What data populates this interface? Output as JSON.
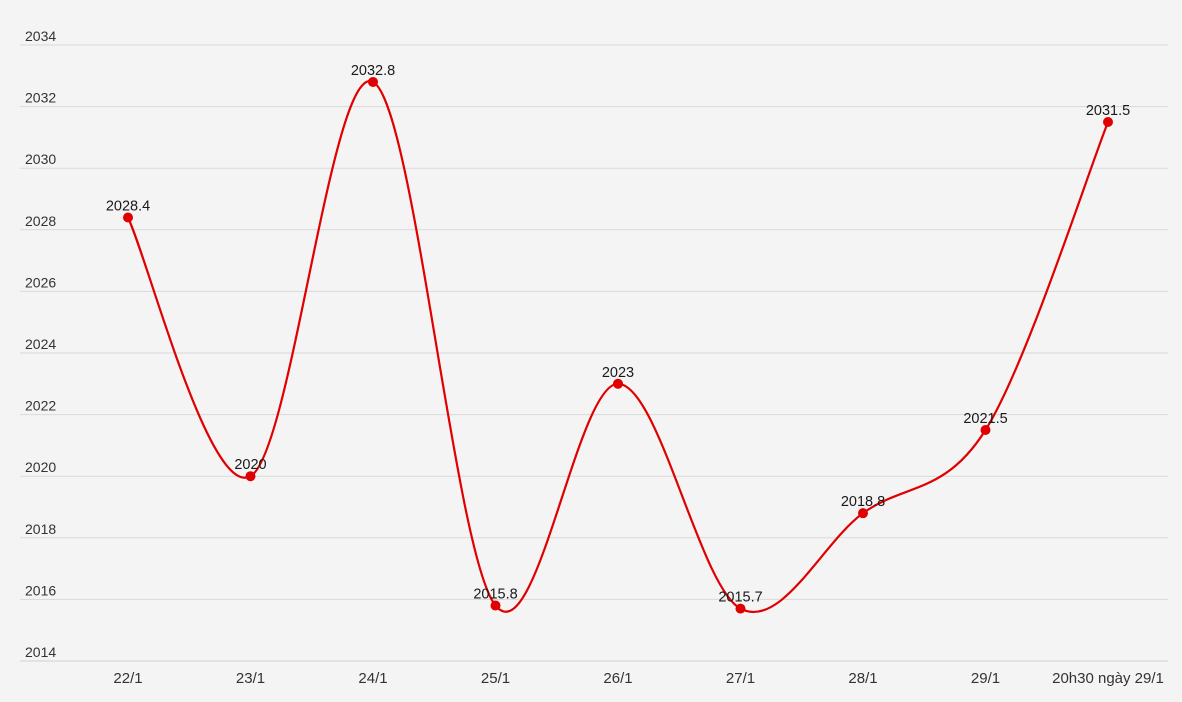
{
  "chart_data": {
    "type": "line",
    "title": "",
    "xlabel": "",
    "ylabel": "",
    "categories": [
      "22/1",
      "23/1",
      "24/1",
      "25/1",
      "26/1",
      "27/1",
      "28/1",
      "29/1",
      "20h30 ngày 29/1"
    ],
    "series": [
      {
        "values": [
          2028.4,
          2020,
          2032.8,
          2015.8,
          2023,
          2015.7,
          2018.8,
          2021.5,
          2031.5
        ]
      }
    ],
    "data_labels": [
      "2028.4",
      "2020",
      "2032.8",
      "2015.8",
      "2023",
      "2015.7",
      "2018.8",
      "2021.5",
      "2031.5"
    ],
    "ylim": [
      2014,
      2034
    ],
    "yticks": [
      "2014",
      "2016",
      "2018",
      "2020",
      "2022",
      "2024",
      "2026",
      "2028",
      "2030",
      "2032",
      "2034"
    ],
    "grid": true,
    "legend": "none",
    "colors": {
      "line": "#e00000",
      "marker": "#e00000",
      "background": "#f4f4f4"
    }
  }
}
